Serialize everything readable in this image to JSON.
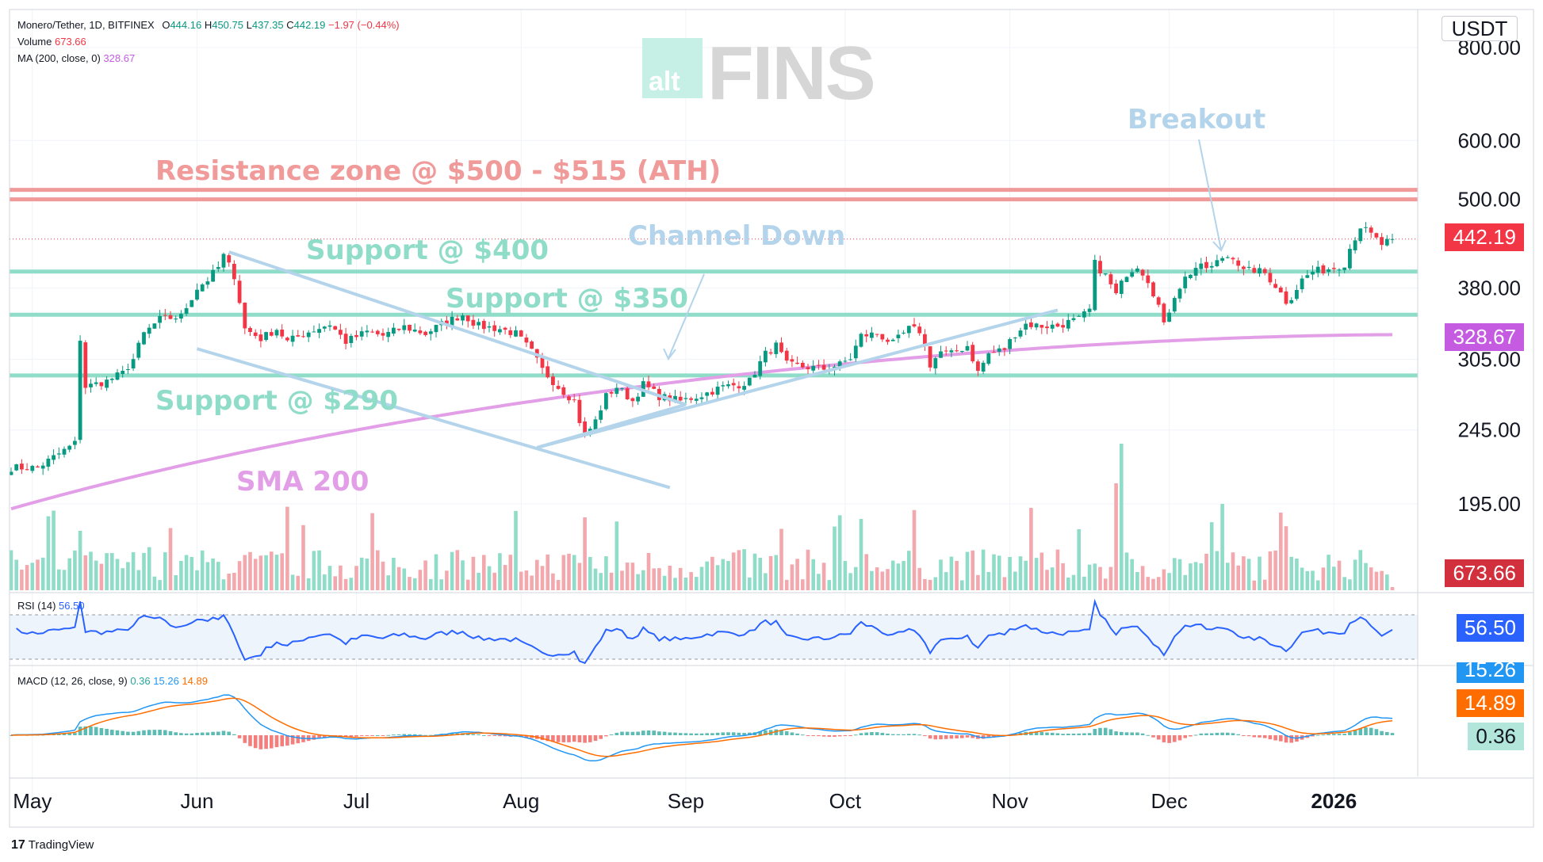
{
  "header": {
    "symbol": "Monero/Tether, 1D, BITFINEX",
    "ohlc": {
      "o_label": "O",
      "o": "444.16",
      "h_label": "H",
      "h": "450.75",
      "l_label": "L",
      "l": "437.35",
      "c_label": "C",
      "c": "442.19",
      "change": "−1.97 (−0.44%)"
    },
    "volume_label": "Volume",
    "volume": "673.66",
    "ma_label": "MA (200, close, 0)",
    "ma": "328.67"
  },
  "currency": "USDT",
  "axis_badges": {
    "price": "442.19",
    "ma": "328.67",
    "volume": "673.66",
    "rsi": "56.50",
    "macd_signal_cut": "15.26",
    "macd_orange": "14.89",
    "macd_hist": "0.36"
  },
  "rsi_legend": {
    "label": "RSI (14)",
    "value": "56.50"
  },
  "macd_legend": {
    "label": "MACD (12, 26, close, 9)",
    "hist": "0.36",
    "macd": "15.26",
    "signal": "14.89"
  },
  "watermark": {
    "alt": "alt",
    "fins": "FINS"
  },
  "footer": {
    "brand": "TradingView",
    "mark": "17"
  },
  "annotations": {
    "resistance": "Resistance zone @ $500 - $515 (ATH)",
    "breakout": "Breakout",
    "channel": "Channel Down",
    "support400": "Support @ $400",
    "support350": "Support @ $350",
    "support290": "Support @ $290",
    "sma": "SMA 200"
  },
  "colors": {
    "up": "#089981",
    "down": "#f23645",
    "up_light": "#8fdcc8",
    "down_light": "#f2a8ad",
    "support": "#8fdcc8",
    "resistance": "#f09a9a",
    "channel": "#b3d4ea",
    "sma": "#e29ee6",
    "rsi_line": "#2962ff",
    "macd_line": "#2196f3",
    "signal_line": "#ff6d00",
    "badge_price": "#f23645",
    "badge_ma": "#c45be0",
    "badge_volume": "#d3303e",
    "badge_rsi": "#2962ff",
    "badge_macd": "#2196f3",
    "badge_signal": "#ff6d00",
    "badge_hist": "#b2e6da"
  },
  "chart_data": {
    "type": "candlestick",
    "x_ticks": [
      "May",
      "Jun",
      "Jul",
      "Aug",
      "Sep",
      "Oct",
      "Nov",
      "Dec",
      "2026"
    ],
    "x_tick_days": [
      4,
      35,
      65,
      96,
      127,
      157,
      188,
      218,
      249
    ],
    "y_scale": "log",
    "y_ticks": [
      195,
      245,
      305,
      380,
      500,
      600,
      800
    ],
    "price_keypoints": [
      [
        0,
        218
      ],
      [
        5,
        218
      ],
      [
        10,
        230
      ],
      [
        12,
        235
      ],
      [
        13,
        325
      ],
      [
        14,
        280
      ],
      [
        18,
        285
      ],
      [
        21,
        292
      ],
      [
        23,
        305
      ],
      [
        25,
        330
      ],
      [
        28,
        345
      ],
      [
        32,
        348
      ],
      [
        35,
        380
      ],
      [
        37,
        390
      ],
      [
        39,
        405
      ],
      [
        40,
        420
      ],
      [
        42,
        395
      ],
      [
        44,
        335
      ],
      [
        47,
        325
      ],
      [
        50,
        335
      ],
      [
        52,
        322
      ],
      [
        56,
        332
      ],
      [
        60,
        340
      ],
      [
        63,
        322
      ],
      [
        67,
        332
      ],
      [
        70,
        328
      ],
      [
        74,
        337
      ],
      [
        78,
        330
      ],
      [
        81,
        340
      ],
      [
        85,
        350
      ],
      [
        88,
        338
      ],
      [
        92,
        335
      ],
      [
        95,
        330
      ],
      [
        97,
        318
      ],
      [
        98,
        312
      ],
      [
        100,
        295
      ],
      [
        103,
        280
      ],
      [
        106,
        268
      ],
      [
        107,
        252
      ],
      [
        108,
        240
      ],
      [
        110,
        252
      ],
      [
        112,
        272
      ],
      [
        114,
        280
      ],
      [
        117,
        268
      ],
      [
        119,
        282
      ],
      [
        122,
        272
      ],
      [
        126,
        268
      ],
      [
        130,
        273
      ],
      [
        134,
        280
      ],
      [
        137,
        282
      ],
      [
        139,
        285
      ],
      [
        142,
        310
      ],
      [
        144,
        318
      ],
      [
        146,
        300
      ],
      [
        149,
        298
      ],
      [
        153,
        296
      ],
      [
        156,
        300
      ],
      [
        158,
        306
      ],
      [
        160,
        328
      ],
      [
        163,
        330
      ],
      [
        166,
        320
      ],
      [
        169,
        335
      ],
      [
        171,
        333
      ],
      [
        173,
        300
      ],
      [
        175,
        312
      ],
      [
        177,
        310
      ],
      [
        180,
        318
      ],
      [
        182,
        293
      ],
      [
        184,
        310
      ],
      [
        187,
        315
      ],
      [
        189,
        330
      ],
      [
        191,
        340
      ],
      [
        194,
        338
      ],
      [
        197,
        338
      ],
      [
        199,
        342
      ],
      [
        201,
        345
      ],
      [
        203,
        355
      ],
      [
        204,
        410
      ],
      [
        206,
        395
      ],
      [
        208,
        372
      ],
      [
        210,
        398
      ],
      [
        212,
        408
      ],
      [
        214,
        390
      ],
      [
        216,
        360
      ],
      [
        217,
        338
      ],
      [
        219,
        372
      ],
      [
        221,
        392
      ],
      [
        223,
        405
      ],
      [
        226,
        405
      ],
      [
        228,
        418
      ],
      [
        230,
        420
      ],
      [
        232,
        400
      ],
      [
        234,
        402
      ],
      [
        236,
        398
      ],
      [
        238,
        383
      ],
      [
        240,
        365
      ],
      [
        241,
        370
      ],
      [
        243,
        390
      ],
      [
        245,
        400
      ],
      [
        247,
        402
      ],
      [
        249,
        405
      ],
      [
        251,
        410
      ],
      [
        252,
        430
      ],
      [
        254,
        460
      ],
      [
        256,
        448
      ],
      [
        258,
        435
      ],
      [
        260,
        442
      ]
    ],
    "annotated_levels": [
      {
        "label": "Resistance zone @ $500 - $515 (ATH)",
        "values": [
          500,
          515
        ]
      },
      {
        "label": "Support @ $400",
        "value": 400
      },
      {
        "label": "Support @ $350",
        "value": 350
      },
      {
        "label": "Support @ $290",
        "value": 290
      }
    ],
    "last_close": 442.19,
    "sma200_last": 328.67,
    "volume_last": 673.66,
    "rsi_last": 56.5,
    "macd": {
      "hist": 0.36,
      "macd": 15.26,
      "signal": 14.89
    },
    "grid": true
  }
}
